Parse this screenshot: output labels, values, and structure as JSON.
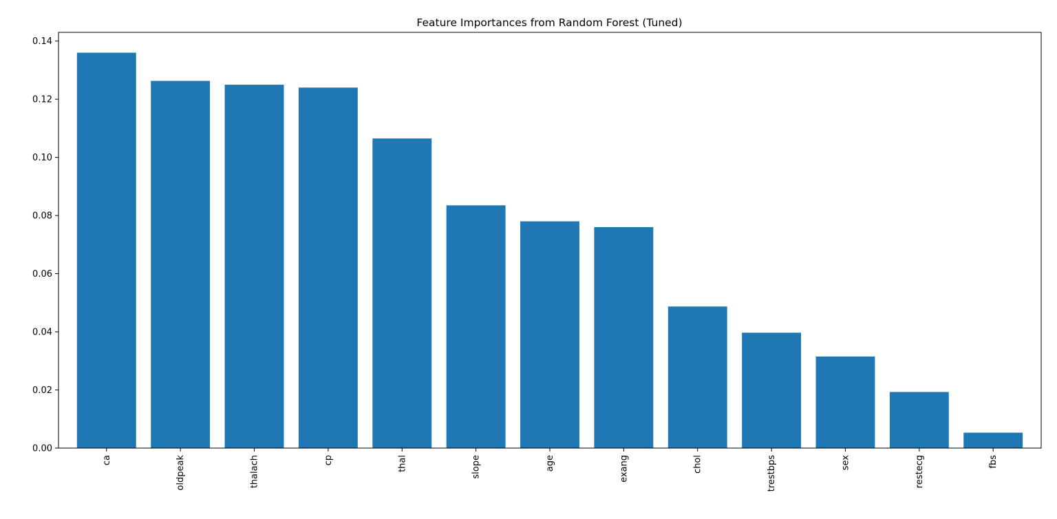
{
  "chart_data": {
    "type": "bar",
    "title": "Feature Importances from Random Forest (Tuned)",
    "xlabel": "",
    "ylabel": "",
    "categories": [
      "ca",
      "oldpeak",
      "thalach",
      "cp",
      "thal",
      "slope",
      "age",
      "exang",
      "chol",
      "trestbps",
      "sex",
      "restecg",
      "fbs"
    ],
    "values": [
      0.136,
      0.1263,
      0.125,
      0.124,
      0.1065,
      0.0835,
      0.078,
      0.076,
      0.0487,
      0.0397,
      0.0315,
      0.0193,
      0.0053
    ],
    "ylim": [
      0,
      0.143
    ],
    "yticks": [
      0.0,
      0.02,
      0.04,
      0.06,
      0.08,
      0.1,
      0.12,
      0.14
    ],
    "ytick_labels": [
      "0.00",
      "0.02",
      "0.04",
      "0.06",
      "0.08",
      "0.10",
      "0.12",
      "0.14"
    ],
    "xtick_rotation": "vertical",
    "grid": false,
    "bar_color": "#1f77b4"
  }
}
